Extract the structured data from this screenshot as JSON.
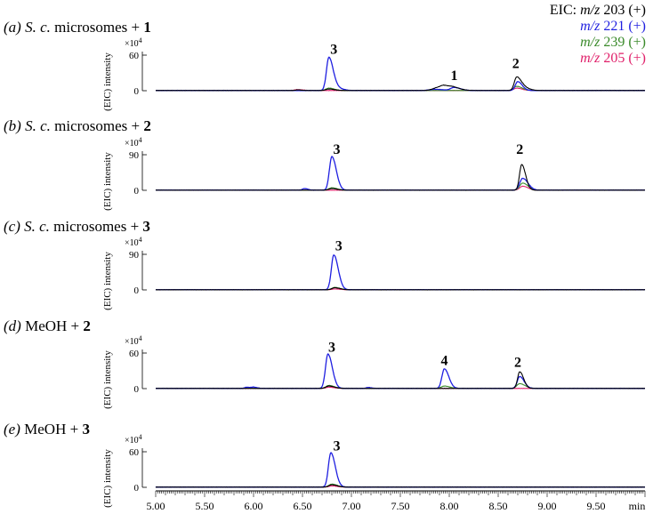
{
  "legend": {
    "prefix": "EIC: ",
    "entries": [
      {
        "mz_label": "m/z",
        "mz": "203",
        "polarity": "(+)",
        "color": "#000000"
      },
      {
        "mz_label": "m/z",
        "mz": "221",
        "polarity": "(+)",
        "color": "#1f1fe0"
      },
      {
        "mz_label": "m/z",
        "mz": "239",
        "polarity": "(+)",
        "color": "#3a8a2a"
      },
      {
        "mz_label": "m/z",
        "mz": "205",
        "polarity": "(+)",
        "color": "#e0206a"
      }
    ]
  },
  "chart_data": {
    "type": "line",
    "xlabel": "min",
    "xlim": [
      5.0,
      10.0
    ],
    "x_ticks": [
      "5.00",
      "5.50",
      "6.00",
      "6.50",
      "7.00",
      "7.50",
      "8.00",
      "8.50",
      "9.00",
      "9.50"
    ],
    "ylabel": "(EIC) intensity",
    "y_multiplier": "×10",
    "y_multiplier_exp": "4",
    "panels": [
      {
        "tag": "(a)",
        "prefix": "S. c. ",
        "title": "microsomes + ",
        "compound": "1",
        "ylim": [
          0,
          60
        ],
        "yticks": [
          "60",
          "0"
        ],
        "yticks_val": [
          60,
          0
        ],
        "series": [
          {
            "mz": "203",
            "peaks": [
              [
                6.45,
                1.0,
                0.02
              ],
              [
                6.77,
                2.5,
                0.03
              ],
              [
                7.88,
                4.5,
                0.05
              ],
              [
                7.95,
                5.5,
                0.04
              ],
              [
                8.05,
                3.5,
                0.04
              ],
              [
                8.69,
                23,
                0.025
              ],
              [
                8.77,
                4,
                0.03
              ]
            ]
          },
          {
            "mz": "221",
            "peaks": [
              [
                6.77,
                56,
                0.025
              ],
              [
                6.87,
                3,
                0.03
              ],
              [
                7.85,
                2,
                0.05
              ],
              [
                8.05,
                5,
                0.035
              ],
              [
                8.7,
                15,
                0.025
              ]
            ]
          },
          {
            "mz": "239",
            "peaks": [
              [
                6.77,
                4,
                0.03
              ],
              [
                8.69,
                7,
                0.03
              ]
            ]
          },
          {
            "mz": "205",
            "peaks": [
              [
                6.45,
                1.5,
                0.03
              ],
              [
                8.69,
                4,
                0.03
              ]
            ]
          }
        ],
        "labels": [
          {
            "text": "3",
            "x": 6.82,
            "y": 62
          },
          {
            "text": "1",
            "x": 8.05,
            "y": 18
          },
          {
            "text": "2",
            "x": 8.68,
            "y": 38
          }
        ]
      },
      {
        "tag": "(b)",
        "prefix": "S. c. ",
        "title": "microsomes + ",
        "compound": "2",
        "ylim": [
          0,
          90
        ],
        "yticks": [
          "90",
          "0"
        ],
        "yticks_val": [
          90,
          0
        ],
        "series": [
          {
            "mz": "203",
            "peaks": [
              [
                6.8,
                4,
                0.03
              ],
              [
                8.74,
                65,
                0.022
              ]
            ]
          },
          {
            "mz": "221",
            "peaks": [
              [
                6.52,
                4,
                0.02
              ],
              [
                6.8,
                85,
                0.025
              ],
              [
                8.75,
                30,
                0.03
              ]
            ]
          },
          {
            "mz": "239",
            "peaks": [
              [
                6.8,
                6,
                0.03
              ],
              [
                8.75,
                18,
                0.03
              ]
            ]
          },
          {
            "mz": "205",
            "peaks": [
              [
                8.75,
                10,
                0.03
              ]
            ]
          }
        ],
        "labels": [
          {
            "text": "3",
            "x": 6.85,
            "y": 92
          },
          {
            "text": "2",
            "x": 8.72,
            "y": 92
          }
        ]
      },
      {
        "tag": "(c)",
        "prefix": "S. c. ",
        "title": "microsomes + ",
        "compound": "3",
        "ylim": [
          0,
          90
        ],
        "yticks": [
          "90",
          "0"
        ],
        "yticks_val": [
          90,
          0
        ],
        "series": [
          {
            "mz": "203",
            "peaks": [
              [
                6.83,
                5,
                0.03
              ]
            ]
          },
          {
            "mz": "221",
            "peaks": [
              [
                6.82,
                88,
                0.025
              ]
            ]
          },
          {
            "mz": "239",
            "peaks": [
              [
                6.83,
                6,
                0.03
              ]
            ]
          },
          {
            "mz": "205",
            "peaks": [
              [
                6.83,
                2,
                0.03
              ]
            ]
          }
        ],
        "labels": [
          {
            "text": "3",
            "x": 6.87,
            "y": 100
          }
        ]
      },
      {
        "tag": "(d)",
        "prefix": "",
        "title": "MeOH + ",
        "compound": "2",
        "ylim": [
          0,
          60
        ],
        "yticks": [
          "60",
          "0"
        ],
        "yticks_val": [
          60,
          0
        ],
        "series": [
          {
            "mz": "203",
            "peaks": [
              [
                6.77,
                4,
                0.03
              ],
              [
                8.72,
                28,
                0.022
              ]
            ]
          },
          {
            "mz": "221",
            "peaks": [
              [
                5.93,
                2,
                0.02
              ],
              [
                6.0,
                2,
                0.02
              ],
              [
                6.76,
                58,
                0.025
              ],
              [
                7.17,
                1.5,
                0.02
              ],
              [
                7.95,
                33,
                0.025
              ],
              [
                8.72,
                20,
                0.025
              ]
            ]
          },
          {
            "mz": "239",
            "peaks": [
              [
                5.93,
                1.5,
                0.02
              ],
              [
                6.77,
                5,
                0.03
              ],
              [
                7.95,
                4,
                0.03
              ],
              [
                8.72,
                8,
                0.03
              ]
            ]
          },
          {
            "mz": "205",
            "peaks": [
              [
                6.77,
                2,
                0.03
              ]
            ]
          }
        ],
        "labels": [
          {
            "text": "3",
            "x": 6.8,
            "y": 62
          },
          {
            "text": "4",
            "x": 7.95,
            "y": 40
          },
          {
            "text": "2",
            "x": 8.7,
            "y": 37
          }
        ]
      },
      {
        "tag": "(e)",
        "prefix": "",
        "title": "MeOH + ",
        "compound": "3",
        "ylim": [
          0,
          60
        ],
        "yticks": [
          "60",
          "0"
        ],
        "yticks_val": [
          60,
          0
        ],
        "series": [
          {
            "mz": "203",
            "peaks": [
              [
                6.8,
                4,
                0.03
              ]
            ]
          },
          {
            "mz": "221",
            "peaks": [
              [
                6.79,
                58,
                0.025
              ]
            ]
          },
          {
            "mz": "239",
            "peaks": [
              [
                6.8,
                5,
                0.03
              ]
            ]
          },
          {
            "mz": "205",
            "peaks": [
              [
                6.8,
                2,
                0.03
              ]
            ]
          }
        ],
        "labels": [
          {
            "text": "3",
            "x": 6.85,
            "y": 62
          }
        ]
      }
    ]
  }
}
